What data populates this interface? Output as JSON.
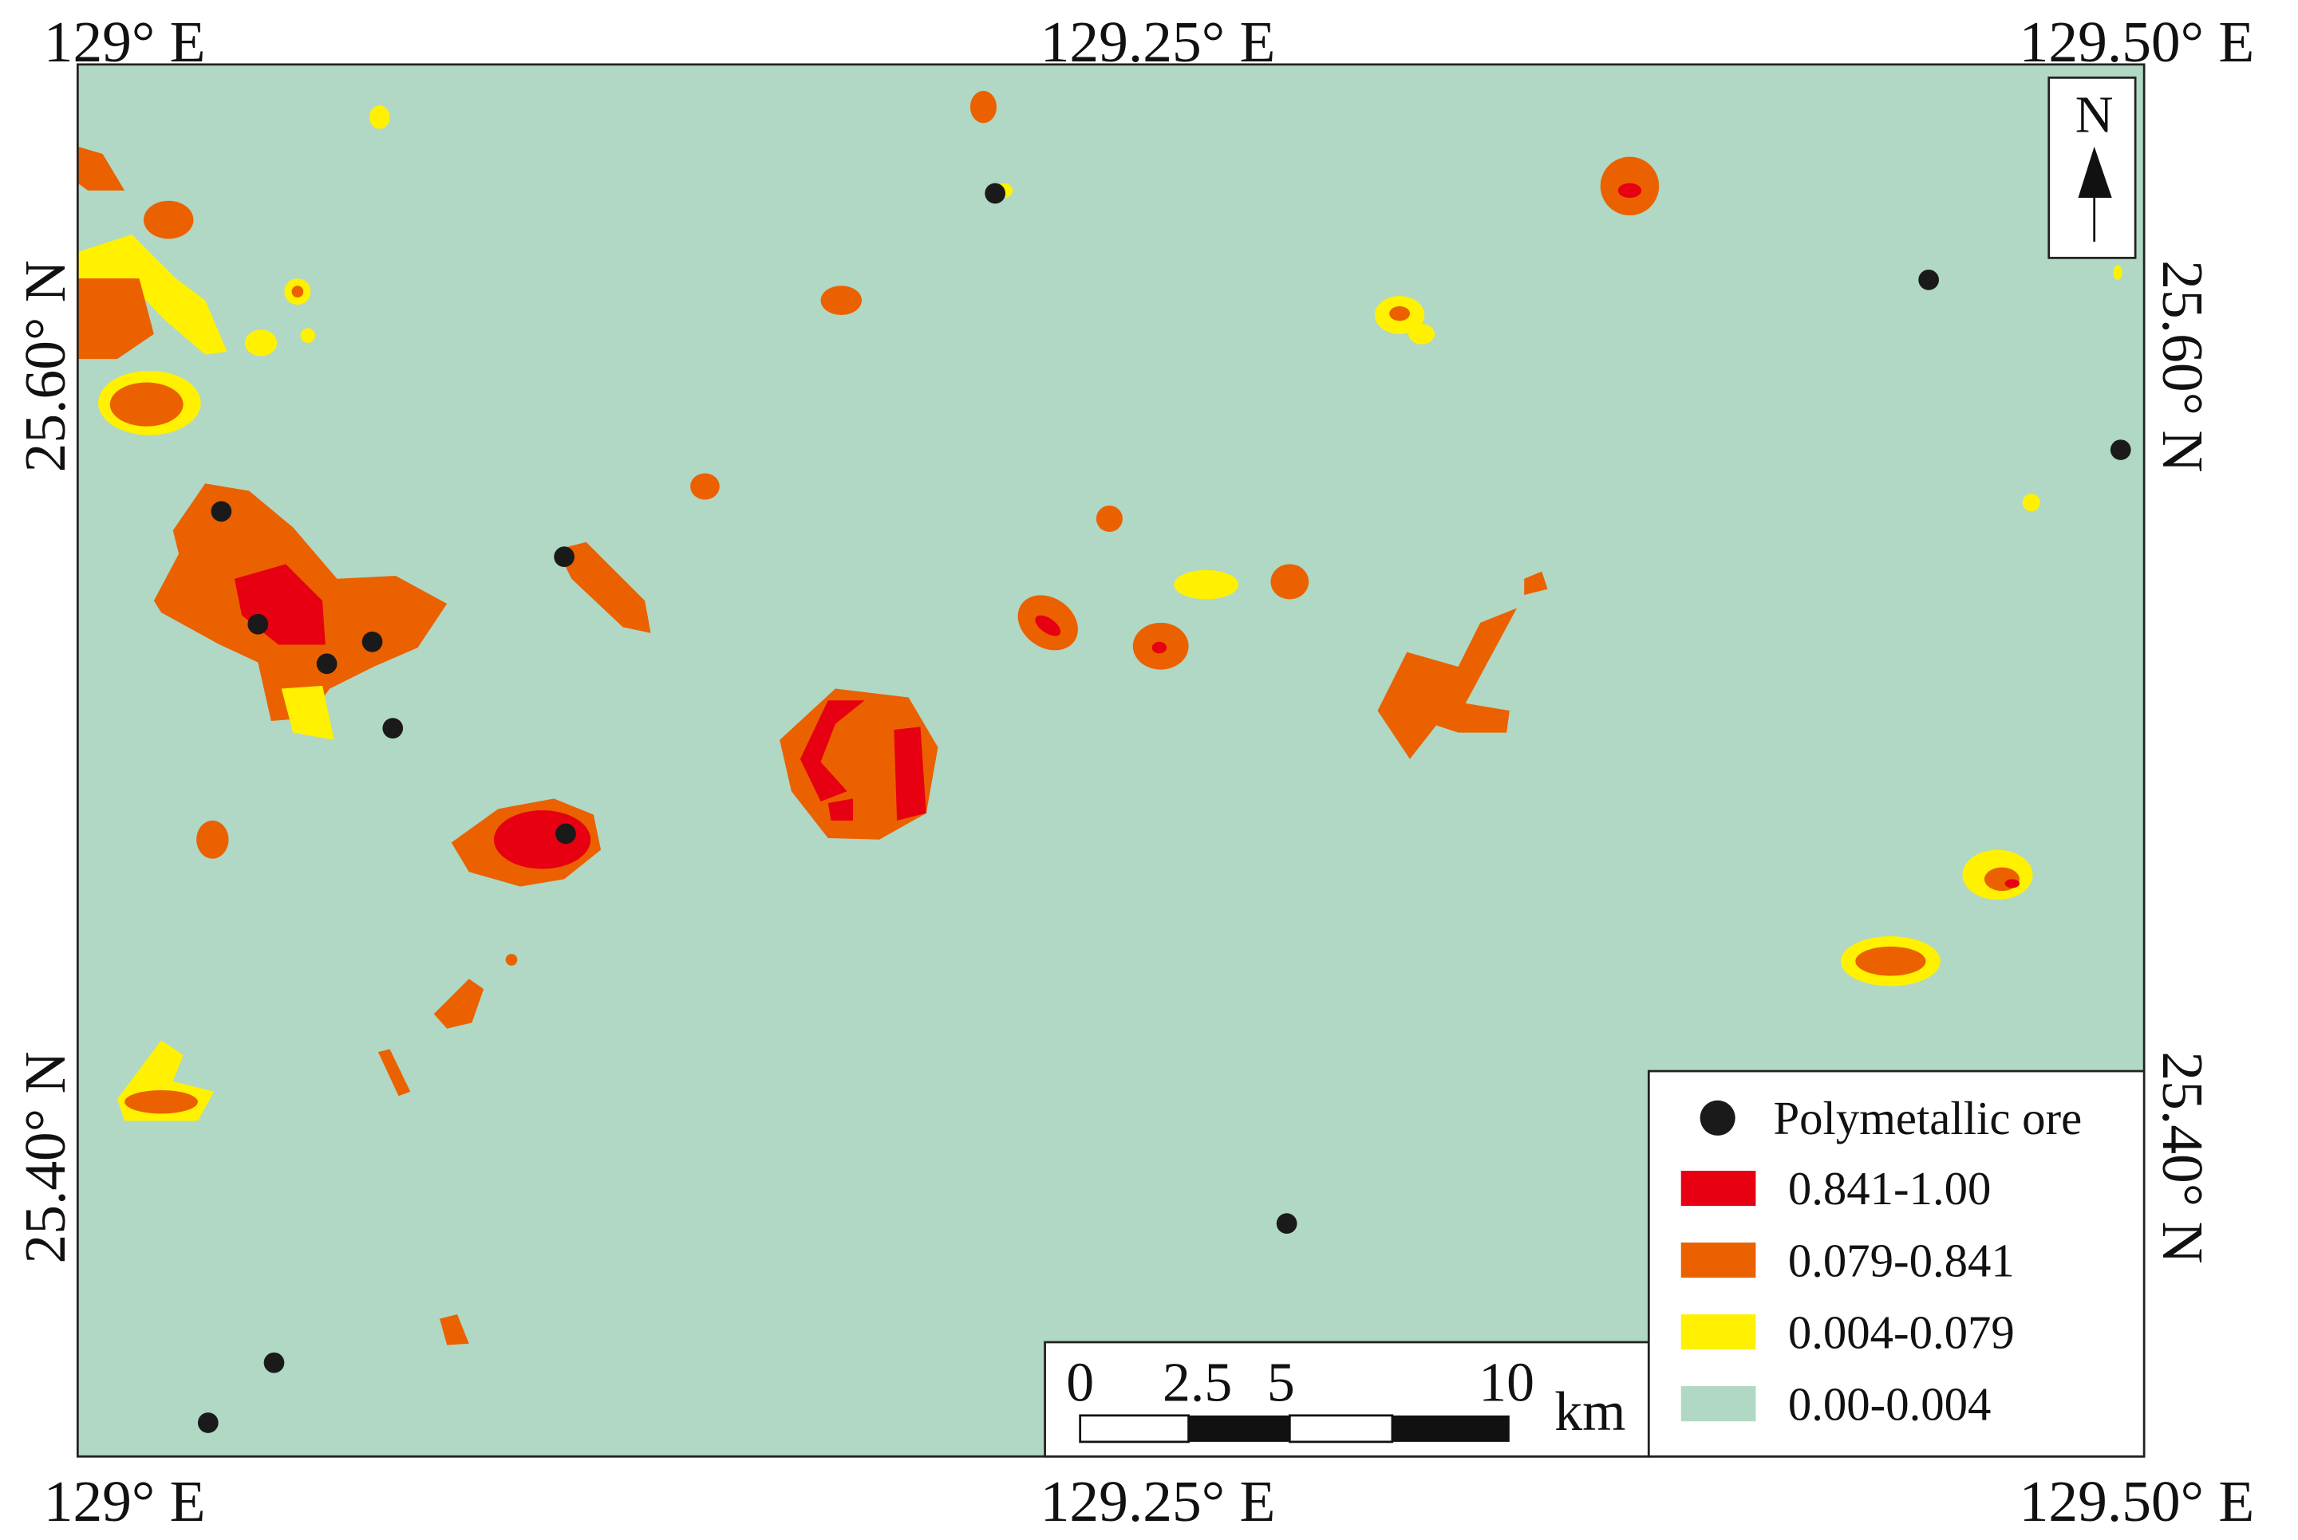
{
  "map": {
    "top_labels": [
      "129° E",
      "129.25° E",
      "129.50° E"
    ],
    "bottom_labels": [
      "129° E",
      "129.25° E",
      "129.50° E"
    ],
    "left_labels": [
      "25.60° N",
      "25.40° N"
    ],
    "right_labels": [
      "25.60° N",
      "25.40° N"
    ],
    "north": "N",
    "legend": [
      {
        "label": "Polymetallic ore",
        "color": "#1a1a1a"
      },
      {
        "label": "0.841-1.00",
        "color": "#e60012"
      },
      {
        "label": "0.079-0.841",
        "color": "#eb6100"
      },
      {
        "label": "0.004-0.079",
        "color": "#fff100"
      },
      {
        "label": "0.00-0.004",
        "color": "#b0d8c4"
      }
    ],
    "scale_bar": {
      "labels": [
        "0",
        "2.5",
        "5",
        "10"
      ],
      "unit": "km"
    }
  }
}
